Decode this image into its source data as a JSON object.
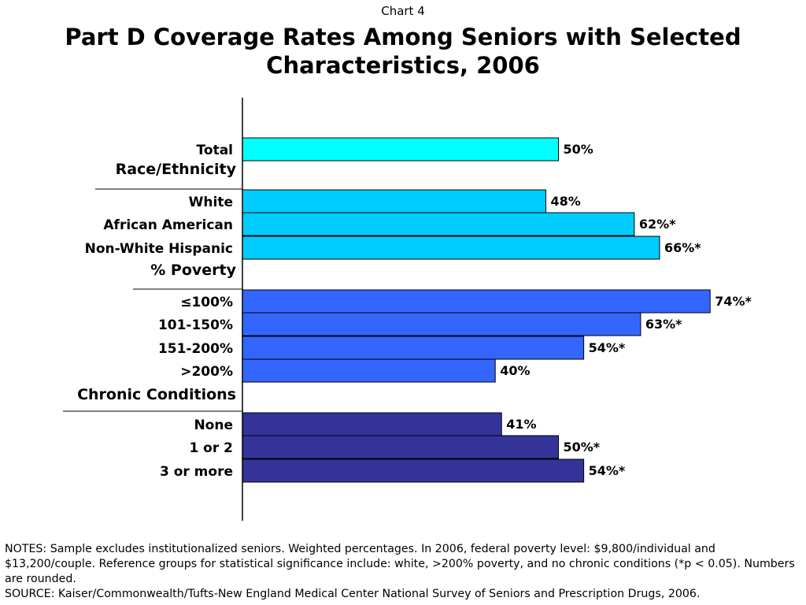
{
  "header": {
    "chart_number": "Chart 4",
    "title": "Part D Coverage Rates Among Seniors with Selected Characteristics, 2006"
  },
  "colors": {
    "total": "#00FFFF",
    "race": "#00CCFF",
    "poverty": "#3366FF",
    "chronic": "#333399",
    "bar_outline": "#000000"
  },
  "chart_data": {
    "type": "bar",
    "orientation": "horizontal",
    "xlim": [
      0,
      100
    ],
    "unit": "%",
    "groups": [
      {
        "heading": "",
        "color_key": "total",
        "bars": [
          {
            "label": "Total",
            "value": 50,
            "value_label": "50%"
          }
        ]
      },
      {
        "heading": "Race/Ethnicity",
        "color_key": "race",
        "bars": [
          {
            "label": "White",
            "value": 48,
            "value_label": "48%"
          },
          {
            "label": "African American",
            "value": 62,
            "value_label": "62%*"
          },
          {
            "label": "Non-White Hispanic",
            "value": 66,
            "value_label": "66%*"
          }
        ]
      },
      {
        "heading": "% Poverty",
        "color_key": "poverty",
        "bars": [
          {
            "label": "≤100%",
            "value": 74,
            "value_label": "74%*"
          },
          {
            "label": "101-150%",
            "value": 63,
            "value_label": "63%*"
          },
          {
            "label": "151-200%",
            "value": 54,
            "value_label": "54%*"
          },
          {
            "label": ">200%",
            "value": 40,
            "value_label": "40%"
          }
        ]
      },
      {
        "heading": "Chronic Conditions",
        "color_key": "chronic",
        "bars": [
          {
            "label": "None",
            "value": 41,
            "value_label": "41%"
          },
          {
            "label": "1 or 2",
            "value": 50,
            "value_label": "50%*"
          },
          {
            "label": "3 or more",
            "value": 54,
            "value_label": "54%*"
          }
        ]
      }
    ]
  },
  "notes": [
    "NOTES: Sample excludes institutionalized seniors. Weighted percentages. In 2006, federal poverty level: $9,800/individual and $13,200/couple. Reference groups for statistical significance include: white, >200% poverty, and no chronic conditions (*p < 0.05). Numbers are rounded.",
    "SOURCE: Kaiser/Commonwealth/Tufts-New England Medical Center National Survey of Seniors and Prescription Drugs, 2006."
  ]
}
